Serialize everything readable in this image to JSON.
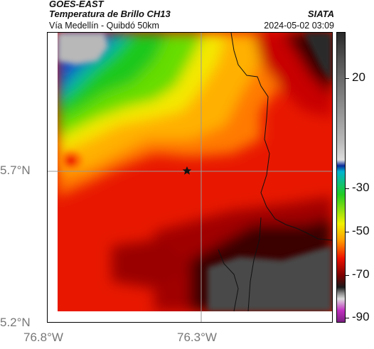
{
  "header": {
    "satellite": "GOES-EAST",
    "product": "Temperatura de Brillo CH13",
    "route": "Vía Medellín - Quibdó 50km",
    "organization": "SIATA",
    "timestamp": "2024-05-02 03:09"
  },
  "axes": {
    "latitude_labels": [
      "5.7°N",
      "5.2°N"
    ],
    "longitude_labels": [
      "76.8°W",
      "76.3°W"
    ]
  },
  "colorbar": {
    "tick_labels": [
      "20",
      "-30",
      "-50",
      "-70",
      "-90"
    ],
    "colors": {
      "warm": "#2a2a2a",
      "cold_blue": "#0a2a9a",
      "green": "#22cc22",
      "yellow": "#f0f000",
      "red": "#ee1100",
      "magenta": "#c030c0"
    }
  },
  "map": {
    "marker_icon": "star-icon",
    "features": [
      "coastline",
      "reference-gridlines"
    ]
  }
}
